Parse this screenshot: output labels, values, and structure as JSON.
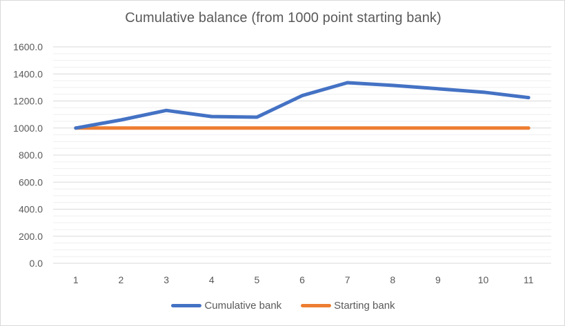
{
  "chart_data": {
    "type": "line",
    "title": "Cumulative balance (from 1000 point starting bank)",
    "xlabel": "",
    "ylabel": "",
    "categories": [
      "1",
      "2",
      "3",
      "4",
      "5",
      "6",
      "7",
      "8",
      "9",
      "10",
      "11"
    ],
    "ylim": [
      0,
      1600
    ],
    "y_ticks": [
      "0.0",
      "200.0",
      "400.0",
      "600.0",
      "800.0",
      "1000.0",
      "1200.0",
      "1400.0",
      "1600.0"
    ],
    "grid": true,
    "legend_position": "bottom",
    "series": [
      {
        "name": "Cumulative bank",
        "color": "#4472C4",
        "values": [
          1000,
          1060,
          1130,
          1085,
          1080,
          1240,
          1335,
          1315,
          1290,
          1265,
          1225
        ]
      },
      {
        "name": "Starting bank",
        "color": "#ED7D31",
        "values": [
          1000,
          1000,
          1000,
          1000,
          1000,
          1000,
          1000,
          1000,
          1000,
          1000,
          1000
        ]
      }
    ]
  }
}
